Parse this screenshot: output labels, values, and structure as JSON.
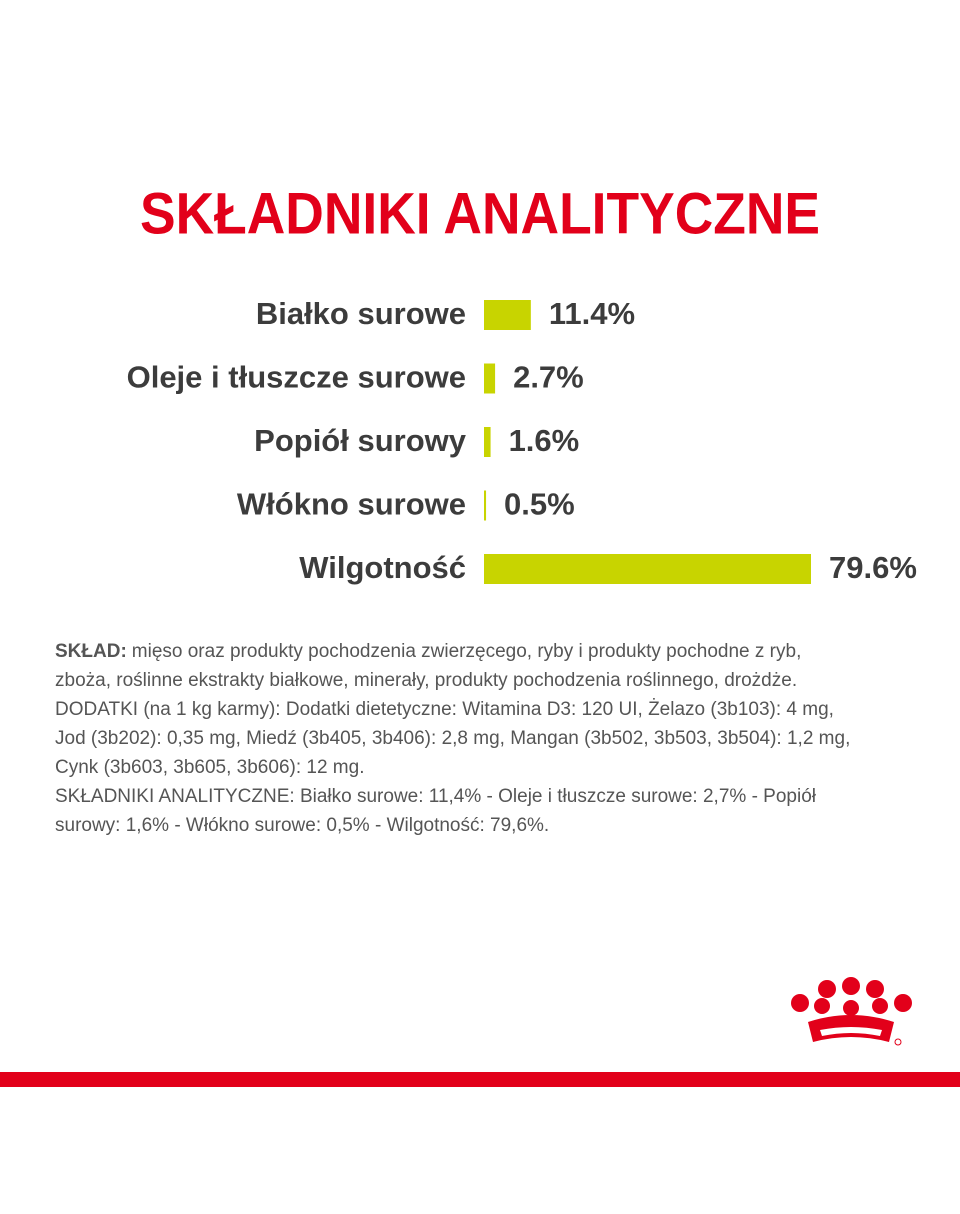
{
  "chart_data": {
    "type": "bar",
    "orientation": "horizontal",
    "title": "SKŁADNIKI ANALITYCZNE",
    "categories": [
      "Białko surowe",
      "Oleje i tłuszcze surowe",
      "Popiół surowy",
      "Włókno surowe",
      "Wilgotność"
    ],
    "values": [
      11.4,
      2.7,
      1.6,
      0.5,
      79.6
    ],
    "value_labels": [
      "11.4%",
      "2.7%",
      "1.6%",
      "0.5%",
      "79.6%"
    ],
    "color": "#c8d400"
  },
  "composition": {
    "label": "SKŁAD:",
    "lines": [
      "mięso oraz produkty pochodzenia zwierzęcego, ryby i produkty pochodne z ryb,",
      "zboża, roślinne ekstrakty białkowe, minerały, produkty pochodzenia roślinnego, drożdże.",
      "DODATKI (na 1 kg karmy): Dodatki dietetyczne: Witamina D3: 120 UI, Żelazo (3b103): 4 mg,",
      "Jod (3b202): 0,35 mg, Miedź (3b405, 3b406): 2,8 mg, Mangan (3b502, 3b503, 3b504): 1,2 mg,",
      "Cynk (3b603, 3b605, 3b606): 12 mg.",
      "SKŁADNIKI ANALITYCZNE: Białko surowe: 11,4% - Oleje i tłuszcze surowe: 2,7% - Popiół",
      "surowy: 1,6% - Włókno surowe: 0,5% - Wilgotność: 79,6%."
    ]
  }
}
